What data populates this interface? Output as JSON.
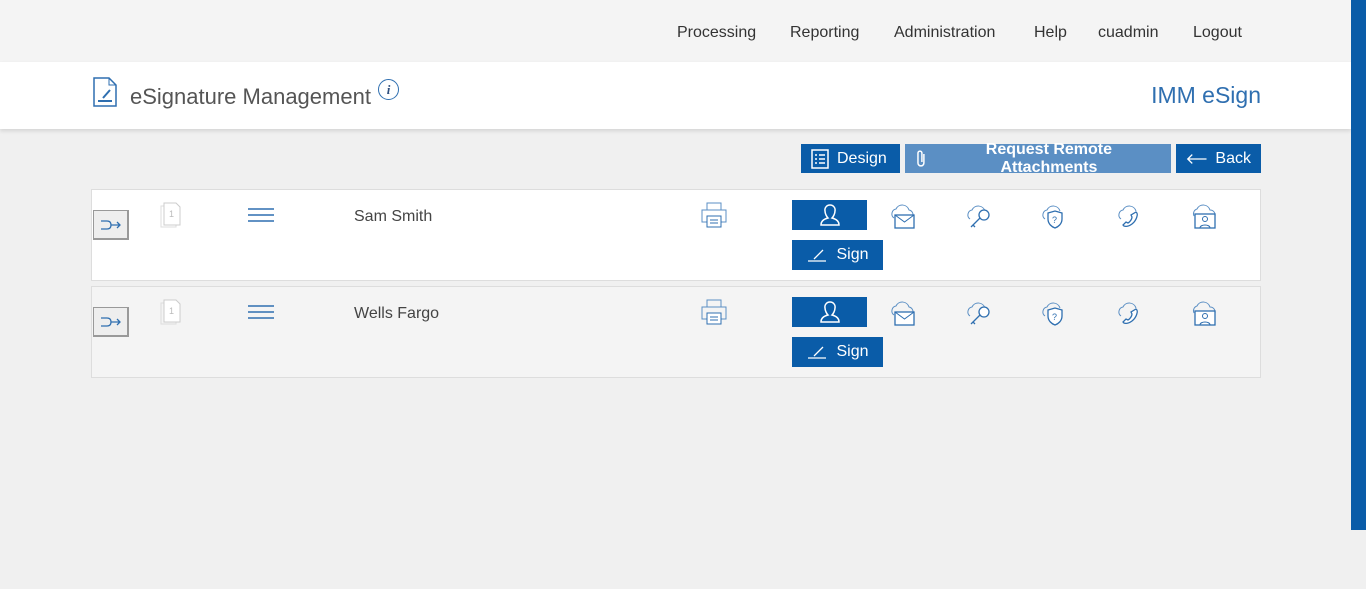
{
  "nav": [
    "Processing",
    "Reporting",
    "Administration",
    "Help",
    "cuadmin",
    "Logout"
  ],
  "header": {
    "title": "eSignature Management",
    "brand": "IMM eSign",
    "info": "i"
  },
  "toolbar": {
    "design": "Design",
    "request": "Request Remote Attachments",
    "back": "Back"
  },
  "colors": {
    "primary": "#0a5ca8",
    "secondary": "#5b8fc4"
  },
  "rows": [
    {
      "name": "Sam Smith",
      "page_count": "1",
      "sign_label": "Sign"
    },
    {
      "name": "Wells Fargo",
      "page_count": "1",
      "sign_label": "Sign"
    }
  ]
}
